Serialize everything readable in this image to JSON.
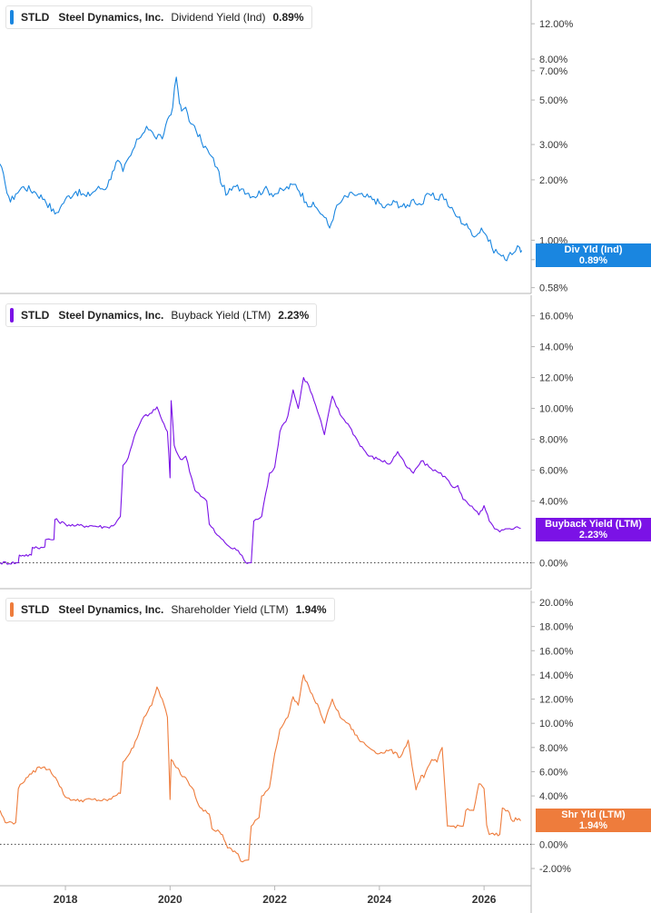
{
  "colors": {
    "div": "#1a86e0",
    "buyback": "#7b12e6",
    "shr": "#ee7c3c",
    "grid": "#dddddd",
    "axis": "#b5b5b5"
  },
  "x_ticks": [
    "2018",
    "2020",
    "2022",
    "2024",
    "2026"
  ],
  "chart_data": [
    {
      "type": "line",
      "legend": {
        "ticker": "STLD",
        "company": "Steel Dynamics, Inc.",
        "metric": "Dividend Yield (Ind)",
        "value": "0.89%"
      },
      "tag": {
        "label": "Div Yld (Ind)",
        "value": "0.89%"
      },
      "yscale": "log",
      "ylim": [
        0.56,
        14.5
      ],
      "yticks": [
        {
          "v": 12,
          "label": "12.00%"
        },
        {
          "v": 8,
          "label": "8.00%"
        },
        {
          "v": 7,
          "label": "7.00%"
        },
        {
          "v": 5,
          "label": "5.00%"
        },
        {
          "v": 3,
          "label": "3.00%"
        },
        {
          "v": 2,
          "label": "2.00%"
        },
        {
          "v": 1,
          "label": "1.00%"
        },
        {
          "v": 0.8,
          "label": "0.80%"
        },
        {
          "v": 0.58,
          "label": "0.58%"
        }
      ],
      "xlim": [
        2016.75,
        2026.9
      ],
      "series": [
        {
          "x": [
            2016.75,
            2016.85,
            2016.95,
            2017.05,
            2017.2,
            2017.4,
            2017.6,
            2017.8,
            2017.9,
            2018.0,
            2018.2,
            2018.4,
            2018.6,
            2018.8,
            2018.9,
            2019.0,
            2019.1,
            2019.25,
            2019.4,
            2019.55,
            2019.7,
            2019.85,
            2019.95,
            2020.05,
            2020.12,
            2020.18,
            2020.22,
            2020.3,
            2020.4,
            2020.5,
            2020.6,
            2020.75,
            2020.9,
            2021.0,
            2021.1,
            2021.25,
            2021.4,
            2021.6,
            2021.8,
            2022.0,
            2022.2,
            2022.4,
            2022.6,
            2022.8,
            2022.95,
            2023.05,
            2023.15,
            2023.3,
            2023.5,
            2023.7,
            2023.9,
            2024.1,
            2024.3,
            2024.5,
            2024.65,
            2024.8,
            2024.95,
            2025.1,
            2025.2,
            2025.35,
            2025.5,
            2025.7,
            2025.85,
            2025.95,
            2026.05,
            2026.15,
            2026.3,
            2026.4,
            2026.5,
            2026.6,
            2026.68,
            2026.72
          ],
          "y": [
            2.4,
            1.9,
            1.55,
            1.7,
            1.85,
            1.75,
            1.6,
            1.35,
            1.45,
            1.6,
            1.75,
            1.65,
            1.8,
            1.85,
            2.2,
            2.5,
            2.2,
            2.65,
            3.2,
            3.7,
            3.3,
            3.2,
            4.0,
            4.6,
            6.5,
            4.8,
            4.4,
            4.6,
            3.8,
            3.5,
            3.1,
            2.7,
            2.3,
            1.85,
            1.7,
            1.85,
            1.8,
            1.65,
            1.8,
            1.7,
            1.8,
            1.9,
            1.55,
            1.45,
            1.3,
            1.15,
            1.4,
            1.6,
            1.7,
            1.65,
            1.6,
            1.45,
            1.55,
            1.45,
            1.6,
            1.5,
            1.7,
            1.6,
            1.7,
            1.45,
            1.3,
            1.15,
            1.05,
            1.15,
            1.05,
            0.92,
            0.85,
            0.8,
            0.87,
            0.88,
            0.92,
            0.89
          ]
        }
      ]
    },
    {
      "type": "line",
      "legend": {
        "ticker": "STLD",
        "company": "Steel Dynamics, Inc.",
        "metric": "Buyback Yield (LTM)",
        "value": "2.23%"
      },
      "tag": {
        "label": "Buyback Yield (LTM)",
        "value": "2.23%"
      },
      "yscale": "linear",
      "ylim": [
        -1.5,
        16.8
      ],
      "yticks": [
        {
          "v": 16,
          "label": "16.00%"
        },
        {
          "v": 14,
          "label": "14.00%"
        },
        {
          "v": 12,
          "label": "12.00%"
        },
        {
          "v": 10,
          "label": "10.00%"
        },
        {
          "v": 8,
          "label": "8.00%"
        },
        {
          "v": 6,
          "label": "6.00%"
        },
        {
          "v": 4,
          "label": "4.00%"
        },
        {
          "v": 0,
          "label": "0.00%"
        }
      ],
      "xlim": [
        2016.75,
        2026.9
      ],
      "series": [
        {
          "x": [
            2016.75,
            2017.1,
            2017.12,
            2017.35,
            2017.37,
            2017.6,
            2017.62,
            2017.78,
            2017.8,
            2018.0,
            2018.2,
            2018.5,
            2018.8,
            2018.95,
            2019.05,
            2019.1,
            2019.2,
            2019.35,
            2019.5,
            2019.65,
            2019.75,
            2019.85,
            2019.95,
            2020.0,
            2020.02,
            2020.08,
            2020.15,
            2020.2,
            2020.3,
            2020.45,
            2020.5,
            2020.55,
            2020.7,
            2020.75,
            2020.9,
            2021.05,
            2021.2,
            2021.3,
            2021.45,
            2021.5,
            2021.55,
            2021.6,
            2021.75,
            2021.9,
            2022.0,
            2022.1,
            2022.25,
            2022.35,
            2022.45,
            2022.55,
            2022.65,
            2022.75,
            2022.85,
            2022.95,
            2023.1,
            2023.25,
            2023.4,
            2023.6,
            2023.8,
            2024.0,
            2024.2,
            2024.35,
            2024.5,
            2024.65,
            2024.8,
            2024.95,
            2025.1,
            2025.25,
            2025.4,
            2025.5,
            2025.6,
            2025.7,
            2025.8,
            2025.9,
            2026.0,
            2026.1,
            2026.2,
            2026.3,
            2026.45,
            2026.6,
            2026.7
          ],
          "y": [
            0,
            0,
            0.5,
            0.5,
            1.0,
            1.0,
            1.5,
            1.5,
            2.8,
            2.5,
            2.4,
            2.4,
            2.3,
            2.5,
            3.0,
            6.3,
            6.8,
            8.5,
            9.5,
            9.7,
            10.1,
            9.2,
            8.5,
            5.5,
            10.5,
            7.6,
            7.0,
            6.7,
            6.9,
            5.0,
            4.6,
            4.5,
            4.0,
            2.5,
            1.8,
            1.3,
            0.9,
            0.8,
            0,
            0,
            0,
            2.7,
            3.0,
            5.8,
            6.2,
            8.5,
            9.5,
            11.2,
            10.0,
            12.0,
            11.5,
            10.5,
            9.5,
            8.3,
            10.8,
            9.6,
            9.0,
            7.8,
            6.9,
            6.7,
            6.4,
            7.2,
            6.3,
            5.8,
            6.6,
            6.2,
            5.9,
            5.6,
            4.9,
            5.0,
            4.1,
            3.8,
            3.5,
            3.1,
            3.7,
            2.7,
            2.2,
            2.0,
            2.2,
            2.3,
            2.23
          ]
        }
      ]
    },
    {
      "type": "line",
      "legend": {
        "ticker": "STLD",
        "company": "Steel Dynamics, Inc.",
        "metric": "Shareholder Yield (LTM)",
        "value": "1.94%"
      },
      "tag": {
        "label": "Shr Yld (LTM)",
        "value": "1.94%"
      },
      "yscale": "linear",
      "ylim": [
        -3.2,
        20.6
      ],
      "yticks": [
        {
          "v": 20,
          "label": "20.00%"
        },
        {
          "v": 18,
          "label": "18.00%"
        },
        {
          "v": 16,
          "label": "16.00%"
        },
        {
          "v": 14,
          "label": "14.00%"
        },
        {
          "v": 12,
          "label": "12.00%"
        },
        {
          "v": 10,
          "label": "10.00%"
        },
        {
          "v": 8,
          "label": "8.00%"
        },
        {
          "v": 6,
          "label": "6.00%"
        },
        {
          "v": 4,
          "label": "4.00%"
        },
        {
          "v": 0,
          "label": "0.00%"
        },
        {
          "v": -2,
          "label": "-2.00%"
        }
      ],
      "xlim": [
        2016.75,
        2026.9
      ],
      "series": [
        {
          "x": [
            2016.75,
            2016.85,
            2016.9,
            2017.05,
            2017.1,
            2017.25,
            2017.35,
            2017.5,
            2017.7,
            2017.85,
            2018.0,
            2018.2,
            2018.5,
            2018.8,
            2018.95,
            2019.05,
            2019.1,
            2019.3,
            2019.5,
            2019.65,
            2019.75,
            2019.85,
            2019.95,
            2020.0,
            2020.02,
            2020.08,
            2020.15,
            2020.2,
            2020.3,
            2020.45,
            2020.55,
            2020.6,
            2020.75,
            2020.8,
            2020.95,
            2021.0,
            2021.1,
            2021.3,
            2021.35,
            2021.5,
            2021.55,
            2021.7,
            2021.75,
            2021.9,
            2022.0,
            2022.1,
            2022.25,
            2022.35,
            2022.45,
            2022.55,
            2022.65,
            2022.75,
            2022.85,
            2022.95,
            2023.1,
            2023.25,
            2023.4,
            2023.6,
            2023.8,
            2024.0,
            2024.2,
            2024.4,
            2024.55,
            2024.7,
            2024.8,
            2024.85,
            2025.0,
            2025.1,
            2025.2,
            2025.3,
            2025.35,
            2025.6,
            2025.65,
            2025.8,
            2025.9,
            2026.0,
            2026.05,
            2026.1,
            2026.3,
            2026.35,
            2026.45,
            2026.55,
            2026.6,
            2026.7
          ],
          "y": [
            2.8,
            1.8,
            1.8,
            1.8,
            4.6,
            5.5,
            5.8,
            6.4,
            6.2,
            5.2,
            3.9,
            3.6,
            3.7,
            3.6,
            4.0,
            4.2,
            6.8,
            8.0,
            10.5,
            11.5,
            13.0,
            12.0,
            10.5,
            3.7,
            7.0,
            6.6,
            6.3,
            5.8,
            5.5,
            4.5,
            3.2,
            3.0,
            2.5,
            1.3,
            1.0,
            0.8,
            -0.3,
            -0.8,
            -1.4,
            -1.3,
            1.5,
            2.2,
            4.0,
            4.7,
            7.5,
            9.5,
            10.5,
            12.2,
            11.5,
            14.0,
            13.0,
            12.0,
            11.2,
            10.0,
            12.0,
            10.5,
            10.0,
            8.7,
            8.0,
            7.5,
            7.8,
            7.2,
            8.6,
            4.5,
            5.7,
            5.5,
            7.0,
            6.8,
            8.0,
            1.5,
            1.5,
            1.5,
            2.8,
            2.8,
            5.0,
            4.6,
            1.6,
            0.8,
            0.8,
            3.0,
            2.8,
            1.9,
            2.2,
            1.94
          ]
        }
      ]
    }
  ]
}
